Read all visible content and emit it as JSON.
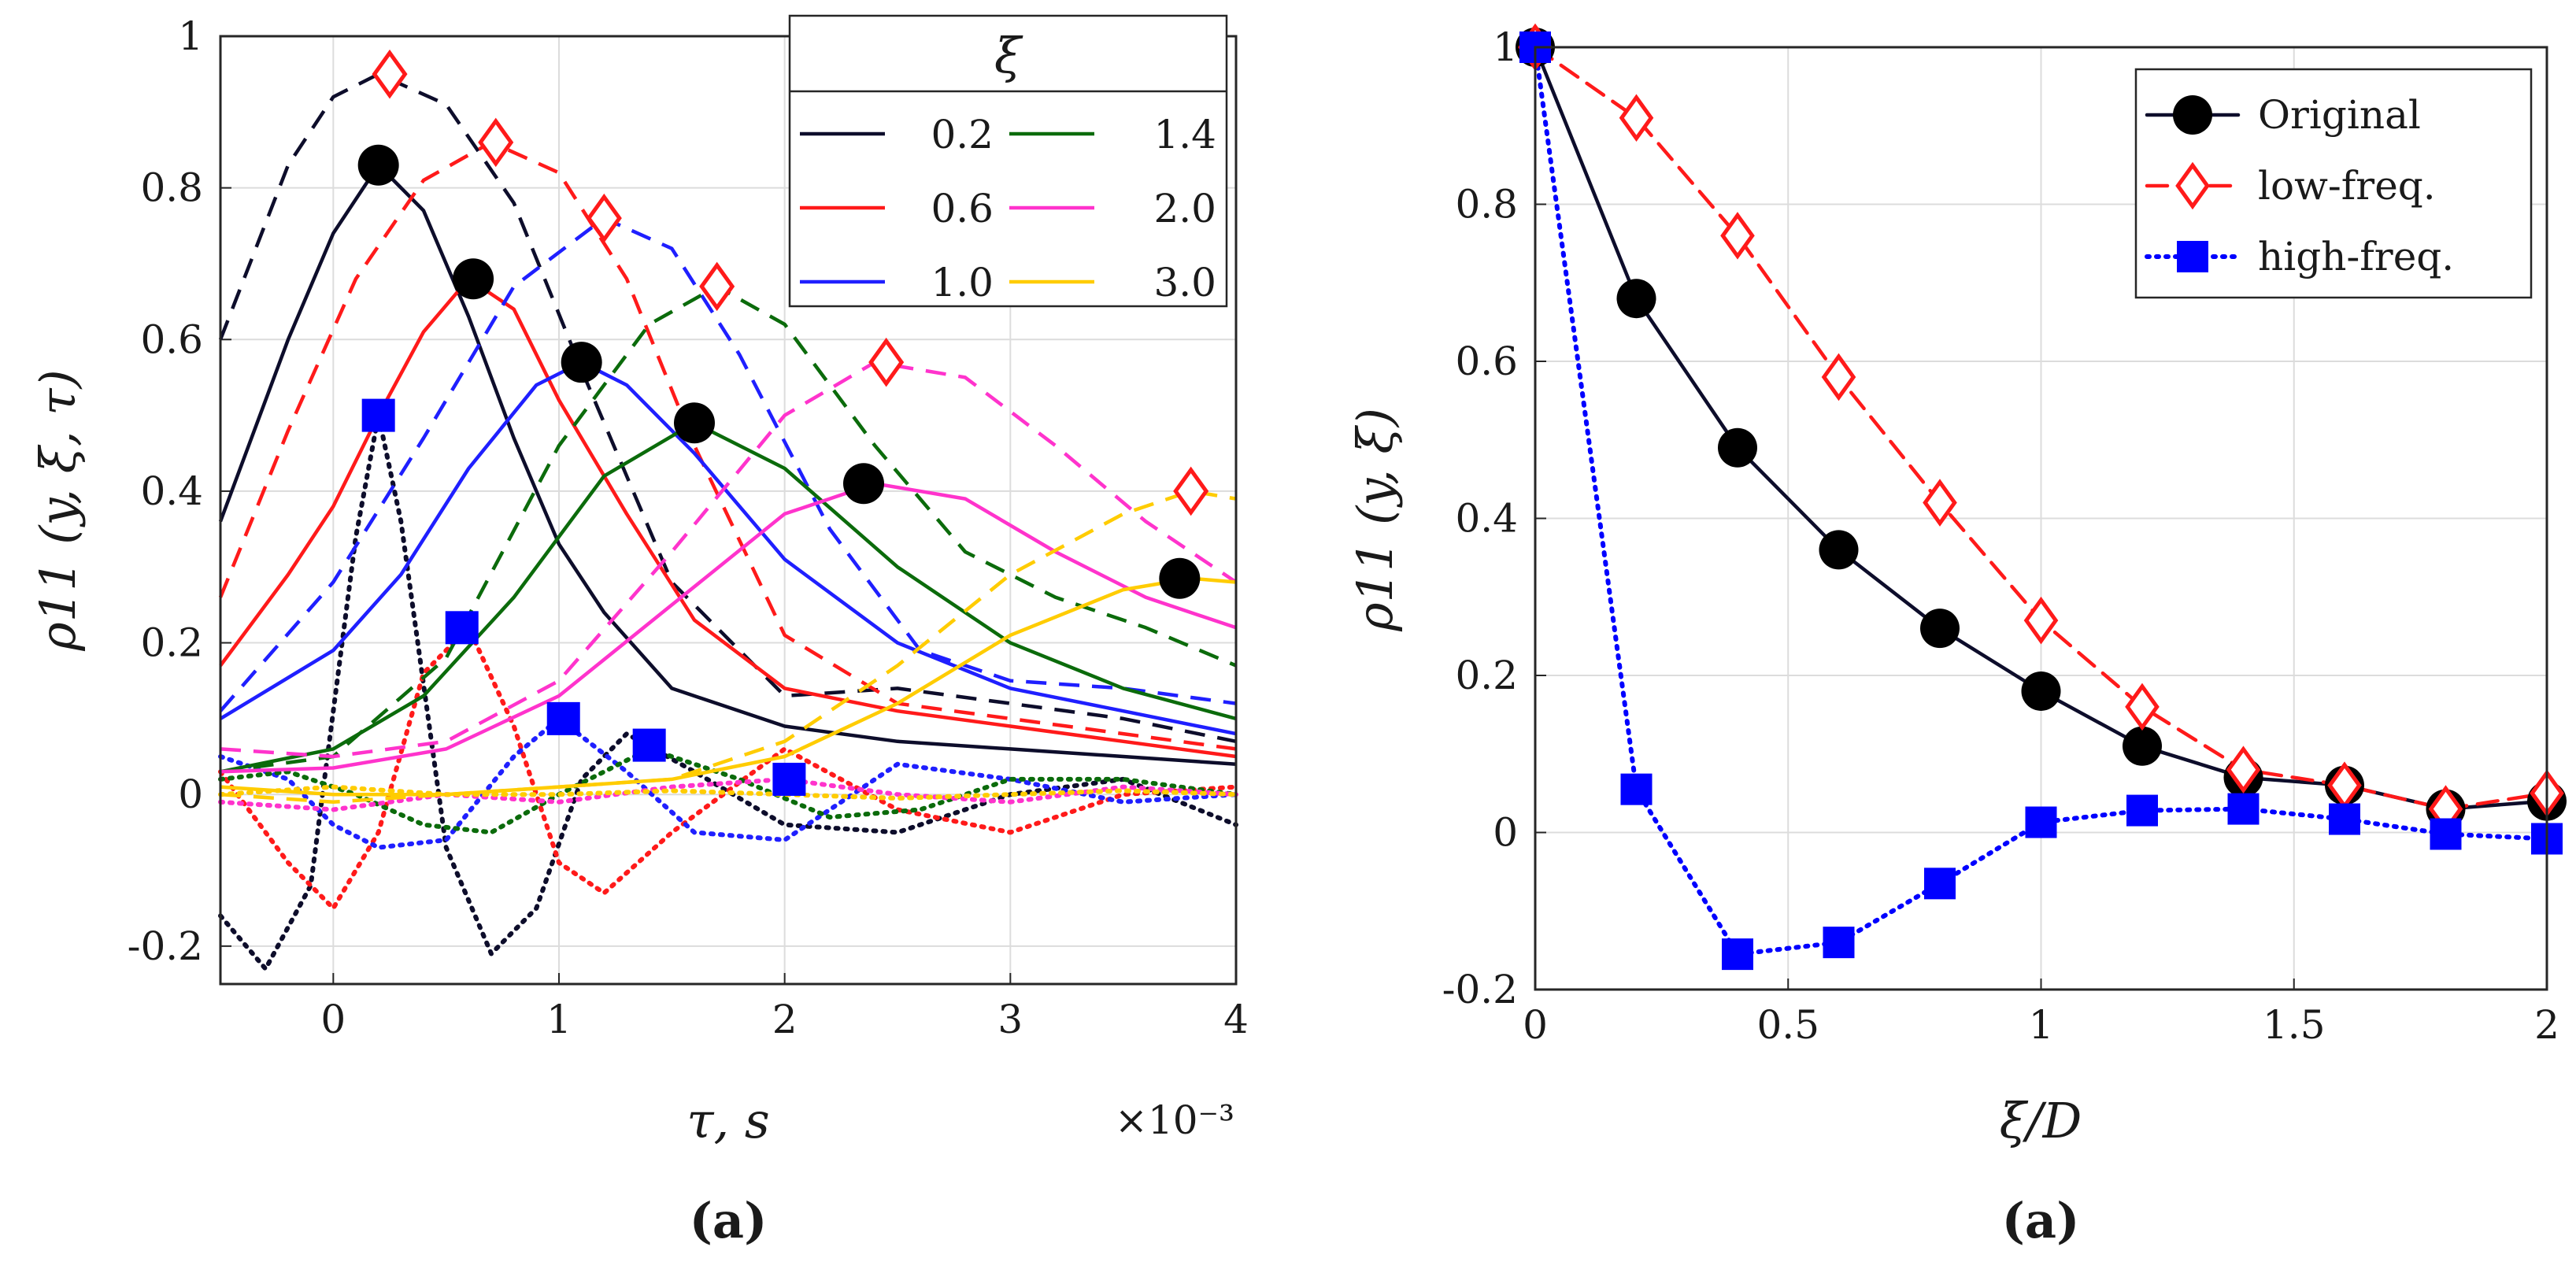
{
  "chart_data": [
    {
      "type": "line",
      "panel_label": "(a)",
      "xlabel": "τ, s",
      "x_multiplier": "×10⁻³",
      "ylabel": "ρ11 (y, ξ, τ)",
      "xlim": [
        -0.5,
        4
      ],
      "ylim": [
        -0.25,
        1
      ],
      "xticks": [
        "0",
        "1",
        "2",
        "3",
        "4"
      ],
      "yticks": [
        "-0.2",
        "0",
        "0.2",
        "0.4",
        "0.6",
        "0.8",
        "1"
      ],
      "grid": true,
      "legend": {
        "title": "ξ",
        "position": "top-right",
        "entries": [
          {
            "label": "0.2",
            "color": "#0d0d2b"
          },
          {
            "label": "0.6",
            "color": "#ff1a1a"
          },
          {
            "label": "1.0",
            "color": "#1f1fff"
          },
          {
            "label": "1.4",
            "color": "#0b6b0b"
          },
          {
            "label": "2.0",
            "color": "#ff33cc"
          },
          {
            "label": "3.0",
            "color": "#ffcc00"
          }
        ]
      },
      "series": [
        {
          "xi": "0.2",
          "color": "#0d0d2b",
          "original": {
            "x": [
              -0.5,
              -0.2,
              0,
              0.2,
              0.4,
              0.6,
              0.8,
              1.0,
              1.2,
              1.5,
              2.0,
              2.5,
              3.0,
              3.5,
              4.0
            ],
            "y": [
              0.36,
              0.6,
              0.74,
              0.83,
              0.77,
              0.63,
              0.47,
              0.33,
              0.24,
              0.14,
              0.09,
              0.07,
              0.06,
              0.05,
              0.04
            ]
          },
          "low": {
            "x": [
              -0.5,
              -0.2,
              0,
              0.2,
              0.5,
              0.8,
              1.1,
              1.5,
              2.0,
              2.5,
              3.0,
              3.5,
              4.0
            ],
            "y": [
              0.6,
              0.83,
              0.92,
              0.95,
              0.91,
              0.78,
              0.56,
              0.28,
              0.13,
              0.14,
              0.12,
              0.1,
              0.07
            ]
          },
          "high": {
            "x": [
              -0.5,
              -0.3,
              -0.1,
              0.1,
              0.2,
              0.3,
              0.5,
              0.7,
              0.9,
              1.1,
              1.3,
              1.6,
              2.0,
              2.5,
              3.0,
              3.5,
              4.0
            ],
            "y": [
              -0.16,
              -0.23,
              -0.12,
              0.34,
              0.5,
              0.36,
              -0.07,
              -0.21,
              -0.15,
              0.02,
              0.08,
              0.03,
              -0.04,
              -0.05,
              0.0,
              0.02,
              -0.04
            ]
          },
          "peak_original": [
            0.2,
            0.83
          ],
          "peak_low": [
            0.25,
            0.95
          ],
          "peak_high": [
            0.2,
            0.5
          ]
        },
        {
          "xi": "0.6",
          "color": "#ff1a1a",
          "original": {
            "x": [
              -0.5,
              -0.2,
              0,
              0.2,
              0.4,
              0.6,
              0.8,
              1.0,
              1.3,
              1.6,
              2.0,
              2.5,
              3.0,
              3.5,
              4.0
            ],
            "y": [
              0.17,
              0.29,
              0.38,
              0.5,
              0.61,
              0.68,
              0.64,
              0.52,
              0.37,
              0.23,
              0.14,
              0.11,
              0.09,
              0.07,
              0.05
            ]
          },
          "low": {
            "x": [
              -0.5,
              -0.2,
              0.1,
              0.4,
              0.7,
              1.0,
              1.3,
              1.6,
              2.0,
              2.5,
              3.0,
              3.5,
              4.0
            ],
            "y": [
              0.26,
              0.48,
              0.68,
              0.81,
              0.86,
              0.82,
              0.68,
              0.46,
              0.21,
              0.12,
              0.1,
              0.08,
              0.06
            ]
          },
          "high": {
            "x": [
              -0.5,
              -0.2,
              0.0,
              0.2,
              0.4,
              0.6,
              0.8,
              1.0,
              1.2,
              1.5,
              2.0,
              2.5,
              3.0,
              3.5,
              4.0
            ],
            "y": [
              0.03,
              -0.09,
              -0.15,
              -0.05,
              0.16,
              0.22,
              0.09,
              -0.09,
              -0.13,
              -0.05,
              0.06,
              -0.02,
              -0.05,
              0.0,
              0.01
            ]
          },
          "peak_original": [
            0.62,
            0.68
          ],
          "peak_low": [
            0.72,
            0.86
          ],
          "peak_high": [
            0.57,
            0.22
          ]
        },
        {
          "xi": "1.0",
          "color": "#1f1fff",
          "original": {
            "x": [
              -0.5,
              0,
              0.3,
              0.6,
              0.9,
              1.1,
              1.3,
              1.6,
              2.0,
              2.5,
              3.0,
              3.5,
              4.0
            ],
            "y": [
              0.1,
              0.19,
              0.29,
              0.43,
              0.54,
              0.57,
              0.54,
              0.45,
              0.31,
              0.2,
              0.14,
              0.11,
              0.08
            ]
          },
          "low": {
            "x": [
              -0.5,
              0,
              0.4,
              0.8,
              1.2,
              1.5,
              1.8,
              2.2,
              2.6,
              3.0,
              3.5,
              4.0
            ],
            "y": [
              0.11,
              0.28,
              0.47,
              0.67,
              0.76,
              0.72,
              0.58,
              0.35,
              0.19,
              0.15,
              0.14,
              0.12
            ]
          },
          "high": {
            "x": [
              -0.5,
              -0.2,
              0.0,
              0.2,
              0.5,
              0.8,
              1.0,
              1.3,
              1.6,
              2.0,
              2.5,
              3.0,
              3.5,
              4.0
            ],
            "y": [
              0.05,
              0.02,
              -0.04,
              -0.07,
              -0.06,
              0.05,
              0.1,
              0.03,
              -0.05,
              -0.06,
              0.04,
              0.02,
              -0.01,
              0.0
            ]
          },
          "peak_original": [
            1.1,
            0.57
          ],
          "peak_low": [
            1.2,
            0.76
          ],
          "peak_high": [
            1.02,
            0.1
          ]
        },
        {
          "xi": "1.4",
          "color": "#0b6b0b",
          "original": {
            "x": [
              -0.5,
              0,
              0.4,
              0.8,
              1.2,
              1.6,
              2.0,
              2.5,
              3.0,
              3.5,
              4.0
            ],
            "y": [
              0.03,
              0.06,
              0.13,
              0.26,
              0.42,
              0.49,
              0.43,
              0.3,
              0.2,
              0.14,
              0.1
            ]
          },
          "low": {
            "x": [
              -0.5,
              0,
              0.5,
              1.0,
              1.4,
              1.7,
              2.0,
              2.4,
              2.8,
              3.2,
              3.6,
              4.0
            ],
            "y": [
              0.03,
              0.05,
              0.18,
              0.46,
              0.62,
              0.67,
              0.62,
              0.46,
              0.32,
              0.26,
              0.22,
              0.17
            ]
          },
          "high": {
            "x": [
              -0.5,
              -0.2,
              0.1,
              0.4,
              0.7,
              1.0,
              1.4,
              1.8,
              2.2,
              2.6,
              3.0,
              3.5,
              4.0
            ],
            "y": [
              0.02,
              0.03,
              0.0,
              -0.04,
              -0.05,
              0.0,
              0.06,
              0.02,
              -0.03,
              -0.02,
              0.02,
              0.02,
              0.0
            ]
          },
          "peak_original": [
            1.6,
            0.49
          ],
          "peak_low": [
            1.7,
            0.67
          ],
          "peak_high": [
            1.4,
            0.065
          ]
        },
        {
          "xi": "2.0",
          "color": "#ff33cc",
          "original": {
            "x": [
              -0.5,
              0,
              0.5,
              1.0,
              1.5,
              2.0,
              2.4,
              2.8,
              3.2,
              3.6,
              4.0
            ],
            "y": [
              0.03,
              0.035,
              0.06,
              0.13,
              0.25,
              0.37,
              0.41,
              0.39,
              0.32,
              0.26,
              0.22
            ]
          },
          "low": {
            "x": [
              -0.5,
              0,
              0.5,
              1.0,
              1.5,
              2.0,
              2.4,
              2.8,
              3.2,
              3.6,
              4.0
            ],
            "y": [
              0.06,
              0.05,
              0.07,
              0.15,
              0.32,
              0.5,
              0.57,
              0.55,
              0.46,
              0.36,
              0.28
            ]
          },
          "high": {
            "x": [
              -0.5,
              0,
              0.5,
              1.0,
              1.5,
              2.0,
              2.5,
              3.0,
              3.5,
              4.0
            ],
            "y": [
              -0.01,
              -0.02,
              0.0,
              -0.01,
              0.01,
              0.02,
              0.0,
              -0.01,
              0.01,
              0.0
            ]
          },
          "peak_original": [
            2.35,
            0.41
          ],
          "peak_low": [
            2.45,
            0.57
          ],
          "peak_high": [
            2.02,
            0.02
          ]
        },
        {
          "xi": "3.0",
          "color": "#ffcc00",
          "original": {
            "x": [
              -0.5,
              0,
              0.5,
              1.0,
              1.5,
              2.0,
              2.5,
              3.0,
              3.5,
              3.8,
              4.0
            ],
            "y": [
              0.01,
              0.0,
              0.0,
              0.01,
              0.02,
              0.05,
              0.12,
              0.21,
              0.27,
              0.285,
              0.28
            ]
          },
          "low": {
            "x": [
              -0.5,
              0,
              0.5,
              1.0,
              1.5,
              2.0,
              2.5,
              3.0,
              3.5,
              3.8,
              4.0
            ],
            "y": [
              0.0,
              -0.01,
              0.0,
              0.01,
              0.02,
              0.07,
              0.17,
              0.29,
              0.37,
              0.4,
              0.39
            ]
          },
          "high": {
            "x": [
              -0.5,
              0,
              0.5,
              1.0,
              1.5,
              2.0,
              2.5,
              3.0,
              3.5,
              4.0
            ],
            "y": [
              0.0,
              0.01,
              0.0,
              0.0,
              0.005,
              0.0,
              -0.005,
              0.0,
              0.005,
              0.0
            ]
          },
          "peak_original": [
            3.75,
            0.285
          ],
          "peak_low": [
            3.8,
            0.4
          ],
          "peak_high": null
        }
      ]
    },
    {
      "type": "line",
      "panel_label": "(a)",
      "xlabel": "ξ/D",
      "ylabel": "ρ11 (y, ξ)",
      "xlim": [
        0,
        2
      ],
      "ylim": [
        -0.2,
        1
      ],
      "xticks": [
        "0",
        "0.5",
        "1",
        "1.5",
        "2"
      ],
      "yticks": [
        "-0.2",
        "0",
        "0.2",
        "0.4",
        "0.6",
        "0.8",
        "1"
      ],
      "grid": true,
      "legend": {
        "position": "top-right",
        "entries": [
          {
            "label": "Original",
            "color": "#0d0d2b"
          },
          {
            "label": "low-freq.",
            "color": "#ff1a1a"
          },
          {
            "label": "high-freq.",
            "color": "#0000ff"
          }
        ]
      },
      "x": [
        0,
        0.2,
        0.4,
        0.6,
        0.8,
        1.0,
        1.2,
        1.4,
        1.6,
        1.8,
        2.0
      ],
      "series": [
        {
          "name": "Original",
          "color": "#0d0d2b",
          "values": [
            1.0,
            0.68,
            0.49,
            0.36,
            0.26,
            0.18,
            0.11,
            0.07,
            0.06,
            0.03,
            0.04
          ]
        },
        {
          "name": "low-freq.",
          "color": "#ff1a1a",
          "values": [
            1.0,
            0.91,
            0.76,
            0.58,
            0.42,
            0.27,
            0.16,
            0.08,
            0.06,
            0.03,
            0.05
          ]
        },
        {
          "name": "high-freq.",
          "color": "#0000ff",
          "values": [
            1.0,
            0.055,
            -0.155,
            -0.14,
            -0.065,
            0.013,
            0.028,
            0.03,
            0.017,
            -0.002,
            -0.008
          ]
        }
      ]
    }
  ]
}
